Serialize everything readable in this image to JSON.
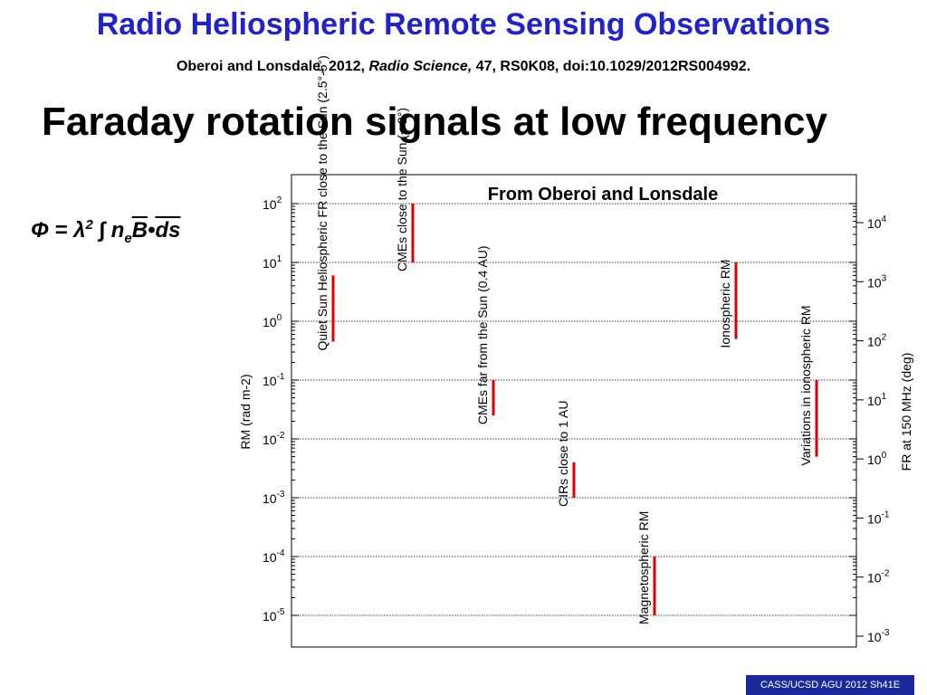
{
  "slide": {
    "title": "Radio Heliospheric Remote Sensing Observations",
    "citation_authors": "Oberoi and Lonsdale, 2012, ",
    "citation_journal": "Radio Science,",
    "citation_rest": " 47, RS0K08, doi:10.1029/2012RS004992.",
    "subtitle": "Faraday rotation signals at low frequency",
    "equation_lhs": "Φ = λ",
    "equation_sup": "2",
    "equation_int": " ∫ n",
    "equation_sub": "e",
    "equation_b": "B",
    "equation_dot": "•",
    "equation_ds": "ds",
    "footer": "CASS/UCSD AGU 2012 Sh41E"
  },
  "chart_data": {
    "type": "range",
    "title": "From Oberoi and Lonsdale",
    "ylabel_left": "RM (rad m-2)",
    "ylabel_right": "FR at 150 MHz (deg)",
    "yscale": "log",
    "ylim_left": [
      1e-05,
      100
    ],
    "ylim_right": [
      0.001,
      10000
    ],
    "left_ticks": [
      {
        "value": 100,
        "base": "10",
        "exp": "2"
      },
      {
        "value": 10,
        "base": "10",
        "exp": "1"
      },
      {
        "value": 1,
        "base": "10",
        "exp": "0"
      },
      {
        "value": 0.1,
        "base": "10",
        "exp": "-1"
      },
      {
        "value": 0.01,
        "base": "10",
        "exp": "-2"
      },
      {
        "value": 0.001,
        "base": "10",
        "exp": "-3"
      },
      {
        "value": 0.0001,
        "base": "10",
        "exp": "-4"
      },
      {
        "value": 1e-05,
        "base": "10",
        "exp": "-5"
      }
    ],
    "right_ticks": [
      {
        "value": 10000,
        "base": "10",
        "exp": "4"
      },
      {
        "value": 1000,
        "base": "10",
        "exp": "3"
      },
      {
        "value": 100,
        "base": "10",
        "exp": "2"
      },
      {
        "value": 10,
        "base": "10",
        "exp": "1"
      },
      {
        "value": 1,
        "base": "10",
        "exp": "0"
      },
      {
        "value": 0.1,
        "base": "10",
        "exp": "-1"
      },
      {
        "value": 0.01,
        "base": "10",
        "exp": "-2"
      },
      {
        "value": 0.001,
        "base": "10",
        "exp": "-3"
      }
    ],
    "grid": "dotted horizontal at decades",
    "bar_color": "#dd0000",
    "ranges": [
      {
        "label": "Quiet Sun Heliospheric FR close to the Sun (2.5°-5°)",
        "rm_min": 0.45,
        "rm_max": 6
      },
      {
        "label": "CMEs close to the Sun (< 2°)",
        "rm_min": 10,
        "rm_max": 100
      },
      {
        "label": "CMEs far from the Sun (0.4 AU)",
        "rm_min": 0.025,
        "rm_max": 0.1
      },
      {
        "label": "CIRs close to 1 AU",
        "rm_min": 0.001,
        "rm_max": 0.004
      },
      {
        "label": "Magnetospheric RM",
        "rm_min": 1e-05,
        "rm_max": 0.0001
      },
      {
        "label": "Ionospheric RM",
        "rm_min": 0.5,
        "rm_max": 10
      },
      {
        "label": "Variations in ionospheric RM",
        "rm_min": 0.005,
        "rm_max": 0.1
      }
    ]
  }
}
